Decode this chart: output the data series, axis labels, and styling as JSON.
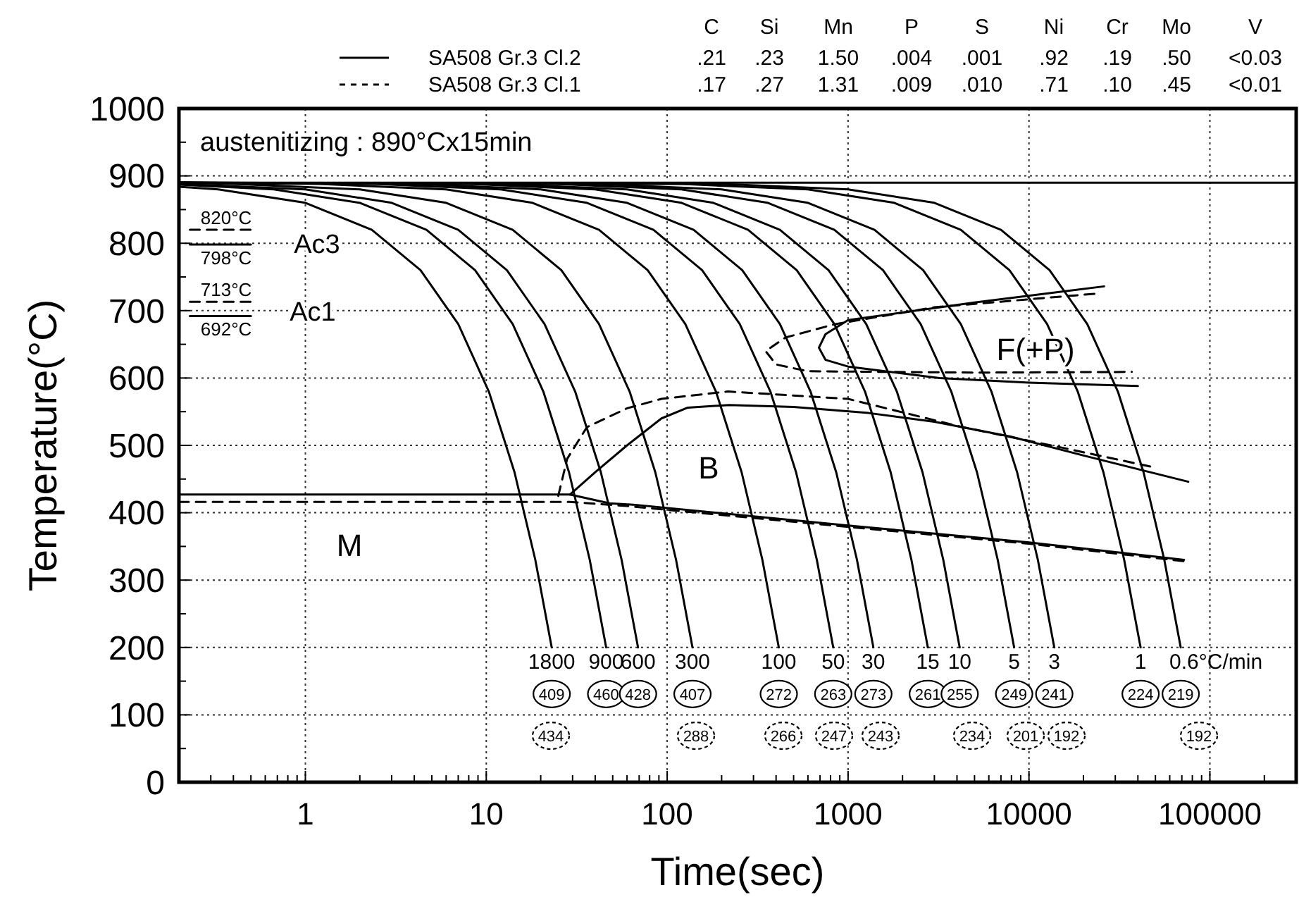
{
  "chart_data": {
    "type": "line",
    "xlabel": "Time(sec)",
    "ylabel": "Temperature(°C)",
    "log": "x",
    "grid": true,
    "legend": "top",
    "xlim": [
      0.2,
      300000
    ],
    "ylim": [
      0,
      1000
    ],
    "xticks": [
      {
        "value": 0.3,
        "label": null
      },
      {
        "value": 0.4,
        "label": null
      },
      {
        "value": 0.5,
        "label": null
      },
      {
        "value": 0.6,
        "label": null
      },
      {
        "value": 0.7,
        "label": null
      },
      {
        "value": 0.8,
        "label": null
      },
      {
        "value": 0.9,
        "label": null
      },
      1,
      {
        "value": 2,
        "label": null
      },
      {
        "value": 3,
        "label": null
      },
      {
        "value": 4,
        "label": null
      },
      {
        "value": 5,
        "label": null
      },
      {
        "value": 6,
        "label": null
      },
      {
        "value": 7,
        "label": null
      },
      {
        "value": 8,
        "label": null
      },
      {
        "value": 9,
        "label": null
      },
      10,
      {
        "value": 20,
        "label": null
      },
      {
        "value": 30,
        "label": null
      },
      {
        "value": 40,
        "label": null
      },
      {
        "value": 50,
        "label": null
      },
      {
        "value": 60,
        "label": null
      },
      {
        "value": 70,
        "label": null
      },
      {
        "value": 80,
        "label": null
      },
      {
        "value": 90,
        "label": null
      },
      100,
      {
        "value": 200,
        "label": null
      },
      {
        "value": 300,
        "label": null
      },
      {
        "value": 400,
        "label": null
      },
      {
        "value": 500,
        "label": null
      },
      {
        "value": 600,
        "label": null
      },
      {
        "value": 700,
        "label": null
      },
      {
        "value": 800,
        "label": null
      },
      {
        "value": 900,
        "label": null
      },
      1000,
      {
        "value": 2000,
        "label": null
      },
      {
        "value": 3000,
        "label": null
      },
      {
        "value": 4000,
        "label": null
      },
      {
        "value": 5000,
        "label": null
      },
      {
        "value": 6000,
        "label": null
      },
      {
        "value": 7000,
        "label": null
      },
      {
        "value": 8000,
        "label": null
      },
      {
        "value": 9000,
        "label": null
      },
      10000,
      {
        "value": 20000,
        "label": null
      },
      {
        "value": 30000,
        "label": null
      },
      {
        "value": 40000,
        "label": null
      },
      {
        "value": 50000,
        "label": null
      },
      {
        "value": 60000,
        "label": null
      },
      {
        "value": 70000,
        "label": null
      },
      {
        "value": 80000,
        "label": null
      },
      {
        "value": 90000,
        "label": null
      },
      100000,
      {
        "value": 200000,
        "label": null
      }
    ],
    "yticks": [
      0,
      {
        "value": 50,
        "label": null
      },
      100,
      {
        "value": 150,
        "label": null
      },
      200,
      {
        "value": 250,
        "label": null
      },
      300,
      {
        "value": 350,
        "label": null
      },
      400,
      {
        "value": 450,
        "label": null
      },
      500,
      {
        "value": 550,
        "label": null
      },
      600,
      {
        "value": 650,
        "label": null
      },
      700,
      {
        "value": 750,
        "label": null
      },
      800,
      {
        "value": 850,
        "label": null
      },
      900,
      {
        "value": 950,
        "label": null
      },
      1000
    ],
    "series": [
      {
        "name": "SA508 Gr.3 Cl.2",
        "color": "#000000",
        "line_style": "solid",
        "x": [
          0.2,
          29,
          48,
          65,
          1000,
          10000,
          72000
        ],
        "values": [
          427,
          427,
          414,
          412,
          381,
          356,
          330
        ]
      },
      {
        "name": "SA508 Gr.3 Cl.1",
        "color": "#000000",
        "line_style": "dashed",
        "x": [
          0.2,
          29,
          60,
          1000,
          10000,
          72000
        ],
        "values": [
          416,
          416,
          410,
          379,
          354,
          328
        ]
      },
      {
        "color": "#000000",
        "line_style": "solid",
        "x": [
          0.2,
          300000
        ],
        "values": [
          890,
          890
        ]
      },
      {
        "color": "#000000",
        "line_style": "solid",
        "x": [
          29,
          40,
          60,
          93,
          130,
          220,
          500,
          1300,
          3000,
          7900,
          20000,
          76000
        ],
        "values": [
          427,
          460,
          500,
          540,
          556,
          560,
          557,
          548,
          535,
          513,
          485,
          446
        ]
      },
      {
        "color": "#000000",
        "line_style": "dashed",
        "x": [
          25,
          28,
          36,
          60,
          93,
          217,
          1000,
          4300,
          15000,
          50000
        ],
        "values": [
          425,
          480,
          527,
          555,
          569,
          580,
          569,
          527,
          497,
          467
        ]
      },
      {
        "color": "#000000",
        "line_style": "solid",
        "x": [
          26000,
          5000,
          1000,
          750,
          690,
          750,
          1000,
          3200,
          10000,
          40000
        ],
        "values": [
          736,
          712,
          686,
          665,
          645,
          627,
          617,
          600,
          593,
          588
        ]
      },
      {
        "color": "#000000",
        "line_style": "dashed",
        "x": [
          23000,
          3000,
          850,
          450,
          350,
          400,
          600,
          5000,
          37000
        ],
        "values": [
          725,
          705,
          680,
          660,
          640,
          620,
          610,
          608,
          609
        ]
      },
      {
        "color": "#000000",
        "line_style": "dashed",
        "x": [
          0.23,
          0.5
        ],
        "values": [
          820,
          820
        ]
      },
      {
        "color": "#000000",
        "line_style": "solid",
        "x": [
          0.23,
          0.5
        ],
        "values": [
          798,
          798
        ]
      },
      {
        "color": "#000000",
        "line_style": "dashed",
        "x": [
          0.23,
          0.5
        ],
        "values": [
          713,
          713
        ]
      },
      {
        "color": "#000000",
        "line_style": "solid",
        "x": [
          0.23,
          0.5
        ],
        "values": [
          692,
          692
        ]
      },
      {
        "color": "#000000",
        "line_style": "solid",
        "x": [
          0.2,
          0.33,
          1,
          2.33,
          4.33,
          7,
          10.33,
          14.33,
          18.67,
          23
        ],
        "values": [
          884,
          880,
          860,
          820,
          760,
          680,
          580,
          460,
          330,
          200
        ]
      },
      {
        "color": "#000000",
        "line_style": "solid",
        "x": [
          0.2,
          0.67,
          2,
          4.67,
          8.67,
          14,
          20.67,
          28.67,
          37.33,
          46
        ],
        "values": [
          887,
          880,
          860,
          820,
          760,
          680,
          580,
          460,
          330,
          200
        ]
      },
      {
        "color": "#000000",
        "line_style": "solid",
        "x": [
          0.2,
          1,
          3,
          7,
          13,
          21,
          31,
          43,
          56,
          69
        ],
        "values": [
          888,
          880,
          860,
          820,
          760,
          680,
          580,
          460,
          330,
          200
        ]
      },
      {
        "color": "#000000",
        "line_style": "solid",
        "x": [
          0.2,
          0.4,
          2,
          6,
          14,
          26,
          42,
          62,
          86,
          112,
          138
        ],
        "values": [
          890,
          888,
          880,
          860,
          820,
          760,
          680,
          580,
          460,
          330,
          200
        ]
      },
      {
        "color": "#000000",
        "line_style": "solid",
        "x": [
          0.2,
          1.2,
          6,
          18,
          42,
          78,
          126,
          186,
          258,
          336,
          414
        ],
        "values": [
          890,
          888,
          880,
          860,
          820,
          760,
          680,
          580,
          460,
          330,
          200
        ]
      },
      {
        "color": "#000000",
        "line_style": "solid",
        "x": [
          0.2,
          2.4,
          12,
          36,
          84,
          156,
          252,
          372,
          516,
          672,
          828
        ],
        "values": [
          890,
          888,
          880,
          860,
          820,
          760,
          680,
          580,
          460,
          330,
          200
        ]
      },
      {
        "color": "#000000",
        "line_style": "solid",
        "x": [
          0.2,
          4,
          20,
          60,
          140,
          260,
          420,
          620,
          860,
          1120,
          1380
        ],
        "values": [
          890,
          888,
          880,
          860,
          820,
          760,
          680,
          580,
          460,
          330,
          200
        ]
      },
      {
        "color": "#000000",
        "line_style": "solid",
        "x": [
          0.2,
          8,
          40,
          120,
          280,
          520,
          840,
          1240,
          1720,
          2240,
          2760
        ],
        "values": [
          890,
          888,
          880,
          860,
          820,
          760,
          680,
          580,
          460,
          330,
          200
        ]
      },
      {
        "color": "#000000",
        "line_style": "solid",
        "x": [
          0.2,
          12,
          60,
          180,
          420,
          780,
          1260,
          1860,
          2580,
          3360,
          4140
        ],
        "values": [
          890,
          888,
          880,
          860,
          820,
          760,
          680,
          580,
          460,
          330,
          200
        ]
      },
      {
        "color": "#000000",
        "line_style": "solid",
        "x": [
          0.2,
          24,
          120,
          360,
          840,
          1560,
          2520,
          3720,
          5160,
          6720,
          8280
        ],
        "values": [
          890,
          888,
          880,
          860,
          820,
          760,
          680,
          580,
          460,
          330,
          200
        ]
      },
      {
        "color": "#000000",
        "line_style": "solid",
        "x": [
          0.2,
          40,
          200,
          600,
          1400,
          2600,
          4200,
          6200,
          8600,
          11200,
          13800
        ],
        "values": [
          890,
          888,
          880,
          860,
          820,
          760,
          680,
          580,
          460,
          330,
          200
        ]
      },
      {
        "color": "#000000",
        "line_style": "solid",
        "x": [
          0.2,
          120,
          600,
          1800,
          4200,
          7800,
          12600,
          18600,
          25800,
          33600,
          41400
        ],
        "values": [
          890,
          888,
          880,
          860,
          820,
          760,
          680,
          580,
          460,
          330,
          200
        ]
      },
      {
        "color": "#000000",
        "line_style": "solid",
        "x": [
          0.2,
          200,
          1000,
          3000,
          7000,
          13000,
          21000,
          31000,
          43000,
          56000,
          69000
        ],
        "values": [
          890,
          888,
          880,
          860,
          820,
          760,
          680,
          580,
          460,
          330,
          200
        ]
      }
    ],
    "annotations": [
      "C Si Mn P S Ni Cr Mo V",
      ".21 .23 1.50 .004 .001 .92 .19 .50 <0.03",
      ".17 .27 1.31 .009 .010 .71 .10 .45 <0.01",
      "austenitizing : 890°Cx15min",
      "M",
      "B",
      "F(+P)",
      "Ac3",
      "Ac1",
      "434",
      "288",
      "266",
      "247",
      "243",
      "234",
      "201",
      "192",
      "192",
      {
        "text": "820°C",
        "x": 0.365,
        "y": 820
      },
      {
        "text": "798°C",
        "x": 0.365,
        "y": 798
      },
      {
        "text": "713°C",
        "x": 0.365,
        "y": 713
      },
      {
        "text": "692°C",
        "x": 0.365,
        "y": 692
      },
      {
        "text": "1800",
        "x": 23,
        "y": 200
      },
      {
        "text": "409",
        "x": 23,
        "y": 200
      },
      {
        "text": "900",
        "x": 46,
        "y": 200
      },
      {
        "text": "460",
        "x": 46,
        "y": 200
      },
      {
        "text": "600",
        "x": 69,
        "y": 200
      },
      {
        "text": "428",
        "x": 69,
        "y": 200
      },
      {
        "text": "300",
        "x": 138,
        "y": 200
      },
      {
        "text": "407",
        "x": 138,
        "y": 200
      },
      {
        "text": "100",
        "x": 414,
        "y": 200
      },
      {
        "text": "272",
        "x": 414,
        "y": 200
      },
      {
        "text": "50",
        "x": 828,
        "y": 200
      },
      {
        "text": "263",
        "x": 828,
        "y": 200
      },
      {
        "text": "30",
        "x": 1380,
        "y": 200
      },
      {
        "text": "273",
        "x": 1380,
        "y": 200
      },
      {
        "text": "15",
        "x": 2760,
        "y": 200
      },
      {
        "text": "261",
        "x": 2760,
        "y": 200
      },
      {
        "text": "10",
        "x": 4140,
        "y": 200
      },
      {
        "text": "255",
        "x": 4140,
        "y": 200
      },
      {
        "text": "5",
        "x": 8280,
        "y": 200
      },
      {
        "text": "249",
        "x": 8280,
        "y": 200
      },
      {
        "text": "3",
        "x": 13800,
        "y": 200
      },
      {
        "text": "241",
        "x": 13800,
        "y": 200
      },
      {
        "text": "1",
        "x": 41400,
        "y": 200
      },
      {
        "text": "224",
        "x": 41400,
        "y": 200
      },
      {
        "text": "0.6°C/min",
        "x": 69000,
        "y": 200
      },
      {
        "text": "219",
        "x": 69000,
        "y": 200
      }
    ]
  }
}
